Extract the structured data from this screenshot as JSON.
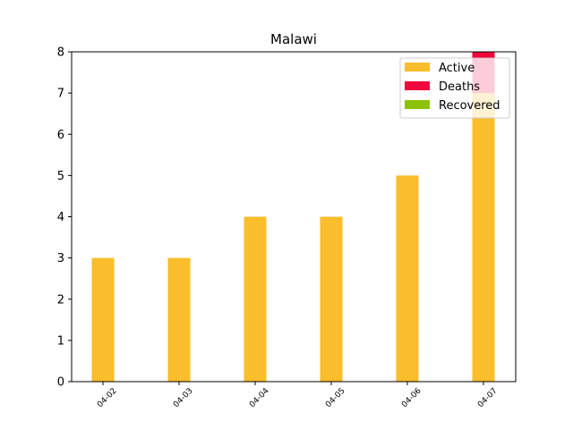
{
  "chart_data": {
    "type": "bar",
    "stacked": true,
    "title": "Malawi",
    "xlabel": "",
    "ylabel": "",
    "categories": [
      "04-02",
      "04-03",
      "04-04",
      "04-05",
      "04-06",
      "04-07"
    ],
    "series": [
      {
        "name": "Active",
        "color": "#fabd2b",
        "values": [
          3,
          3,
          4,
          4,
          5,
          7
        ]
      },
      {
        "name": "Deaths",
        "color": "#f0053c",
        "values": [
          0,
          0,
          0,
          0,
          0,
          1
        ]
      },
      {
        "name": "Recovered",
        "color": "#8cc30a",
        "values": [
          0,
          0,
          0,
          0,
          0,
          0
        ]
      }
    ],
    "ylim": [
      0,
      8
    ],
    "yticks": [
      0,
      1,
      2,
      3,
      4,
      5,
      6,
      7,
      8
    ],
    "grid": false,
    "legend_position": "top-right"
  }
}
